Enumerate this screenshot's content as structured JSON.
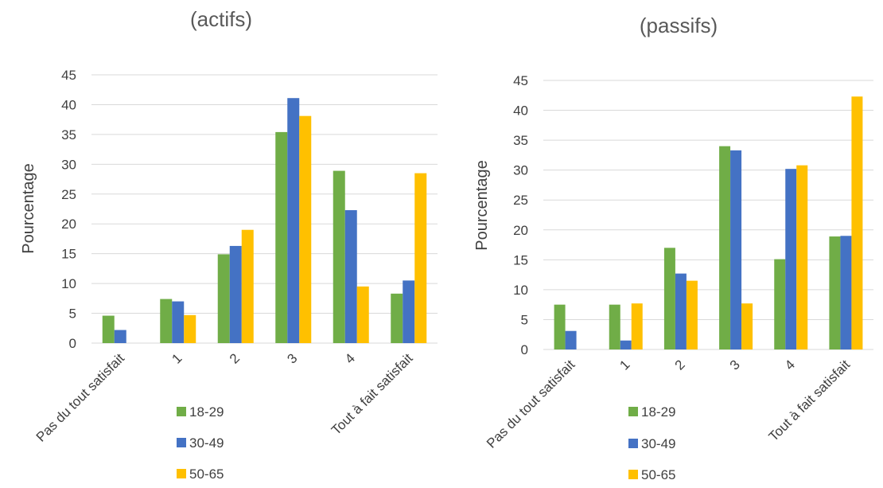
{
  "chart_data": [
    {
      "type": "bar",
      "title": "(actifs)",
      "ylabel": "Pourcentage",
      "xlabel": "",
      "ylim": [
        0,
        45
      ],
      "yticks": [
        "0",
        "5",
        "10",
        "15",
        "20",
        "25",
        "30",
        "35",
        "40",
        "45"
      ],
      "categories": [
        "Pas du tout satisfait",
        "1",
        "2",
        "3",
        "4",
        "Tout à fait satisfait"
      ],
      "series": [
        {
          "name": "18-29",
          "color": "#70ad47",
          "values": [
            4.6,
            7.4,
            14.9,
            35.4,
            28.9,
            8.3
          ]
        },
        {
          "name": "30-49",
          "color": "#4472c4",
          "values": [
            2.2,
            7.0,
            16.3,
            41.1,
            22.3,
            10.5
          ]
        },
        {
          "name": "50-65",
          "color": "#ffc000",
          "values": [
            0,
            4.7,
            19.0,
            38.1,
            9.5,
            28.5
          ]
        }
      ],
      "grid": true,
      "legend": "bottom"
    },
    {
      "type": "bar",
      "title": "(passifs)",
      "ylabel": "Pourcentage",
      "xlabel": "",
      "ylim": [
        0,
        45
      ],
      "yticks": [
        "0",
        "5",
        "10",
        "15",
        "20",
        "25",
        "30",
        "35",
        "40",
        "45"
      ],
      "categories": [
        "Pas du tout satisfait",
        "1",
        "2",
        "3",
        "4",
        "Tout à fait satisfait"
      ],
      "series": [
        {
          "name": "18-29",
          "color": "#70ad47",
          "values": [
            7.5,
            7.5,
            17.0,
            34.0,
            15.1,
            18.9
          ]
        },
        {
          "name": "30-49",
          "color": "#4472c4",
          "values": [
            3.1,
            1.5,
            12.7,
            33.3,
            30.2,
            19.0
          ]
        },
        {
          "name": "50-65",
          "color": "#ffc000",
          "values": [
            0,
            7.7,
            11.5,
            7.7,
            30.8,
            42.3
          ]
        }
      ],
      "grid": true,
      "legend": "bottom"
    }
  ]
}
